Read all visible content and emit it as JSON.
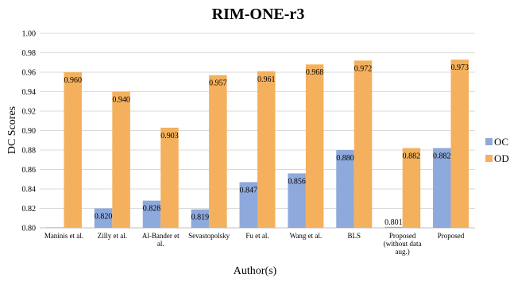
{
  "chart_data": {
    "type": "bar",
    "title": "RIM-ONE-r3",
    "xlabel": "Author(s)",
    "ylabel": "DC Scores",
    "ylim": [
      0.8,
      1.0
    ],
    "yticks": [
      "0.80",
      "0.82",
      "0.84",
      "0.86",
      "0.88",
      "0.90",
      "0.92",
      "0.94",
      "0.96",
      "0.98",
      "1.00"
    ],
    "grid": true,
    "legend_position": "right",
    "categories": [
      [
        "Maninis et al."
      ],
      [
        "Zilly et al."
      ],
      [
        "Al-Bander et",
        "al."
      ],
      [
        "Sevastopolsky"
      ],
      [
        "Fu et al."
      ],
      [
        "Wang et al."
      ],
      [
        "BLS"
      ],
      [
        "Proposed",
        "(without data",
        "aug.)"
      ],
      [
        "Proposed"
      ]
    ],
    "series": [
      {
        "name": "OC",
        "color": "#8ea9db",
        "values": [
          0.799,
          0.82,
          0.828,
          0.819,
          0.847,
          0.856,
          0.88,
          0.801,
          0.882
        ],
        "labels": [
          "",
          "0.820",
          "0.828",
          "0.819",
          "0.847",
          "0.856",
          "0.880",
          "0.801",
          "0.882"
        ]
      },
      {
        "name": "OD",
        "color": "#f4b05c",
        "values": [
          0.96,
          0.94,
          0.903,
          0.957,
          0.961,
          0.968,
          0.972,
          0.882,
          0.973
        ],
        "labels": [
          "0.960",
          "0.940",
          "0.903",
          "0.957",
          "0.961",
          "0.968",
          "0.972",
          "0.882",
          "0.973"
        ]
      }
    ]
  }
}
